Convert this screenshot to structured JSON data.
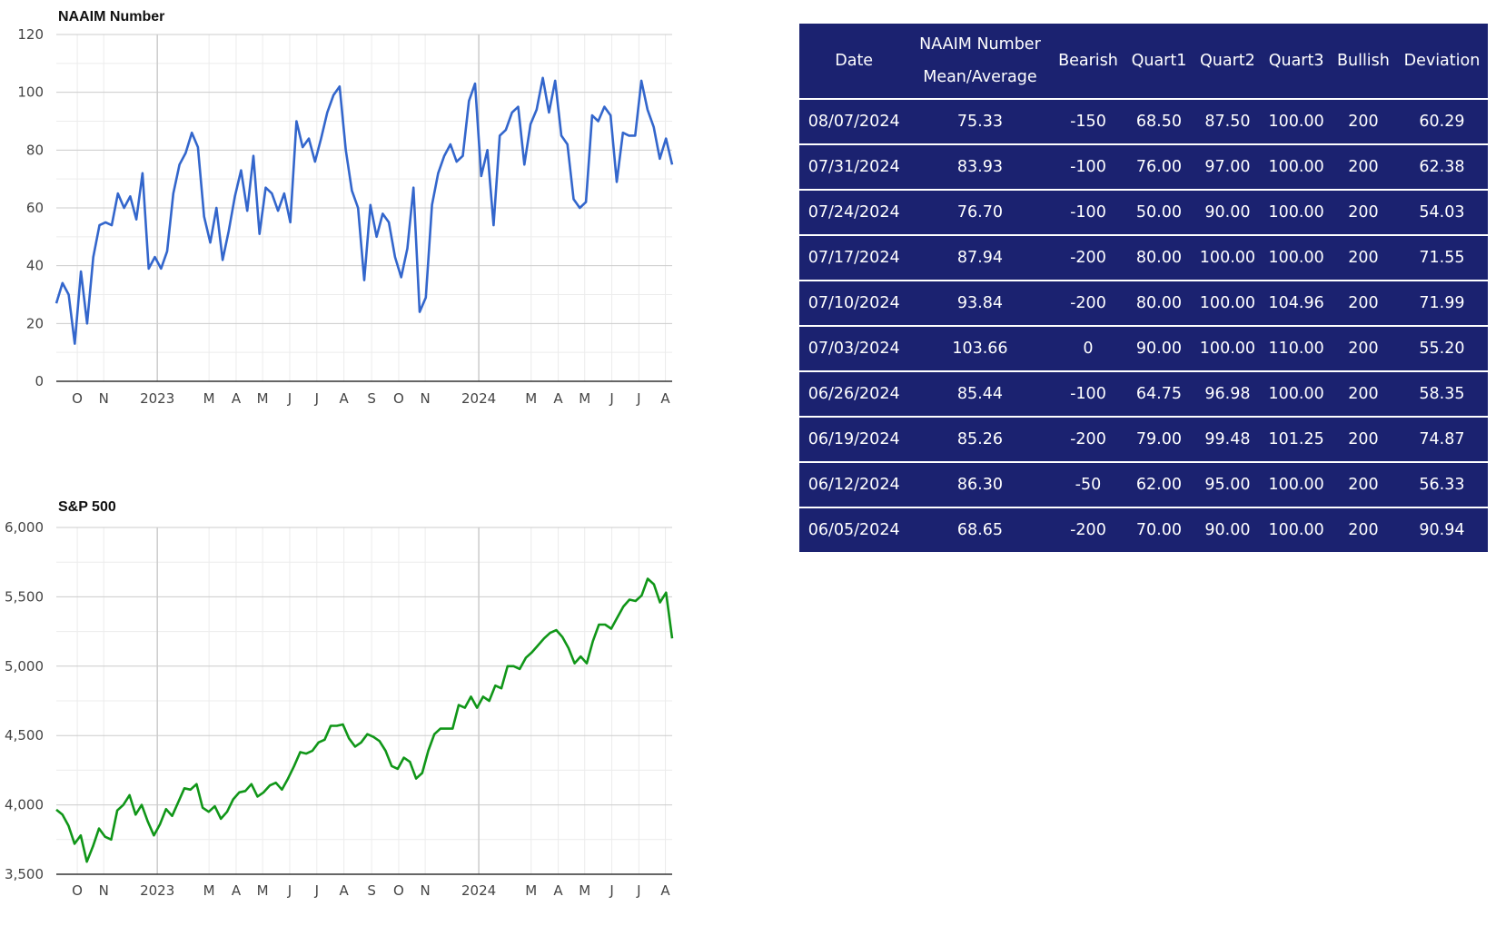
{
  "table": {
    "headers": [
      "Date",
      "NAAIM Number\nMean/Average",
      "Bearish",
      "Quart1",
      "Quart2",
      "Quart3",
      "Bullish",
      "Deviation"
    ],
    "header_line1": "NAAIM Number",
    "header_line2": "Mean/Average",
    "rows": [
      [
        "08/07/2024",
        "75.33",
        "-150",
        "68.50",
        "87.50",
        "100.00",
        "200",
        "60.29"
      ],
      [
        "07/31/2024",
        "83.93",
        "-100",
        "76.00",
        "97.00",
        "100.00",
        "200",
        "62.38"
      ],
      [
        "07/24/2024",
        "76.70",
        "-100",
        "50.00",
        "90.00",
        "100.00",
        "200",
        "54.03"
      ],
      [
        "07/17/2024",
        "87.94",
        "-200",
        "80.00",
        "100.00",
        "100.00",
        "200",
        "71.55"
      ],
      [
        "07/10/2024",
        "93.84",
        "-200",
        "80.00",
        "100.00",
        "104.96",
        "200",
        "71.99"
      ],
      [
        "07/03/2024",
        "103.66",
        "0",
        "90.00",
        "100.00",
        "110.00",
        "200",
        "55.20"
      ],
      [
        "06/26/2024",
        "85.44",
        "-100",
        "64.75",
        "96.98",
        "100.00",
        "200",
        "58.35"
      ],
      [
        "06/19/2024",
        "85.26",
        "-200",
        "79.00",
        "99.48",
        "101.25",
        "200",
        "74.87"
      ],
      [
        "06/12/2024",
        "86.30",
        "-50",
        "62.00",
        "95.00",
        "100.00",
        "200",
        "56.33"
      ],
      [
        "06/05/2024",
        "68.65",
        "-200",
        "70.00",
        "90.00",
        "100.00",
        "200",
        "90.94"
      ]
    ]
  },
  "chart_data": [
    {
      "type": "line",
      "title": "NAAIM Number",
      "color": "#3366cc",
      "ylim": [
        0,
        120
      ],
      "yticks": [
        0,
        20,
        40,
        60,
        80,
        100,
        120
      ],
      "ytick_labels": [
        "0",
        "20",
        "40",
        "60",
        "80",
        "100",
        "120"
      ],
      "grid": true,
      "x_month_labels": [
        "O",
        "N",
        "2023",
        "M",
        "A",
        "M",
        "J",
        "J",
        "A",
        "S",
        "O",
        "N",
        "2024",
        "M",
        "A",
        "M",
        "J",
        "J",
        "A"
      ],
      "x_range_weeks": 98,
      "values": [
        27,
        34,
        30,
        13,
        38,
        20,
        43,
        54,
        55,
        54,
        65,
        60,
        64,
        56,
        72,
        39,
        43,
        39,
        45,
        65,
        75,
        79,
        86,
        81,
        57,
        48,
        60,
        42,
        52,
        64,
        73,
        59,
        78,
        51,
        67,
        65,
        59,
        65,
        55,
        90,
        81,
        84,
        76,
        84,
        93,
        99,
        102,
        80,
        66,
        60,
        35,
        61,
        50,
        58,
        55,
        43,
        36,
        46,
        67,
        24,
        29,
        61,
        72,
        78,
        82,
        76,
        78,
        97,
        103,
        71,
        80,
        54,
        85,
        87,
        93,
        95,
        75,
        89,
        94,
        105,
        93,
        104,
        85,
        82,
        63,
        60,
        62,
        92,
        90,
        95,
        92,
        69,
        86,
        85,
        85,
        104,
        94,
        88,
        77,
        84,
        75
      ]
    },
    {
      "type": "line",
      "title": "S&P 500",
      "color": "#109618",
      "ylim": [
        3500,
        6000
      ],
      "yticks": [
        3500,
        4000,
        4500,
        5000,
        5500,
        6000
      ],
      "ytick_labels": [
        "3,500",
        "4,000",
        "4,500",
        "5,000",
        "5,500",
        "6,000"
      ],
      "grid": true,
      "x_month_labels": [
        "O",
        "N",
        "2023",
        "M",
        "A",
        "M",
        "J",
        "J",
        "A",
        "S",
        "O",
        "N",
        "2024",
        "M",
        "A",
        "M",
        "J",
        "J",
        "A"
      ],
      "x_range_weeks": 98,
      "values": [
        3965,
        3930,
        3850,
        3720,
        3780,
        3590,
        3700,
        3830,
        3770,
        3750,
        3960,
        4000,
        4070,
        3930,
        4000,
        3880,
        3780,
        3860,
        3970,
        3920,
        4020,
        4120,
        4110,
        4150,
        3980,
        3950,
        3990,
        3900,
        3950,
        4040,
        4090,
        4100,
        4150,
        4060,
        4090,
        4140,
        4160,
        4110,
        4190,
        4280,
        4380,
        4370,
        4390,
        4450,
        4470,
        4570,
        4570,
        4580,
        4480,
        4420,
        4450,
        4510,
        4490,
        4460,
        4390,
        4280,
        4260,
        4340,
        4310,
        4190,
        4230,
        4390,
        4510,
        4550,
        4550,
        4550,
        4720,
        4700,
        4780,
        4700,
        4780,
        4750,
        4860,
        4840,
        5000,
        5000,
        4980,
        5060,
        5100,
        5150,
        5200,
        5240,
        5260,
        5210,
        5130,
        5020,
        5070,
        5020,
        5180,
        5300,
        5300,
        5270,
        5350,
        5430,
        5480,
        5470,
        5510,
        5630,
        5590,
        5460,
        5530,
        5200
      ]
    }
  ]
}
